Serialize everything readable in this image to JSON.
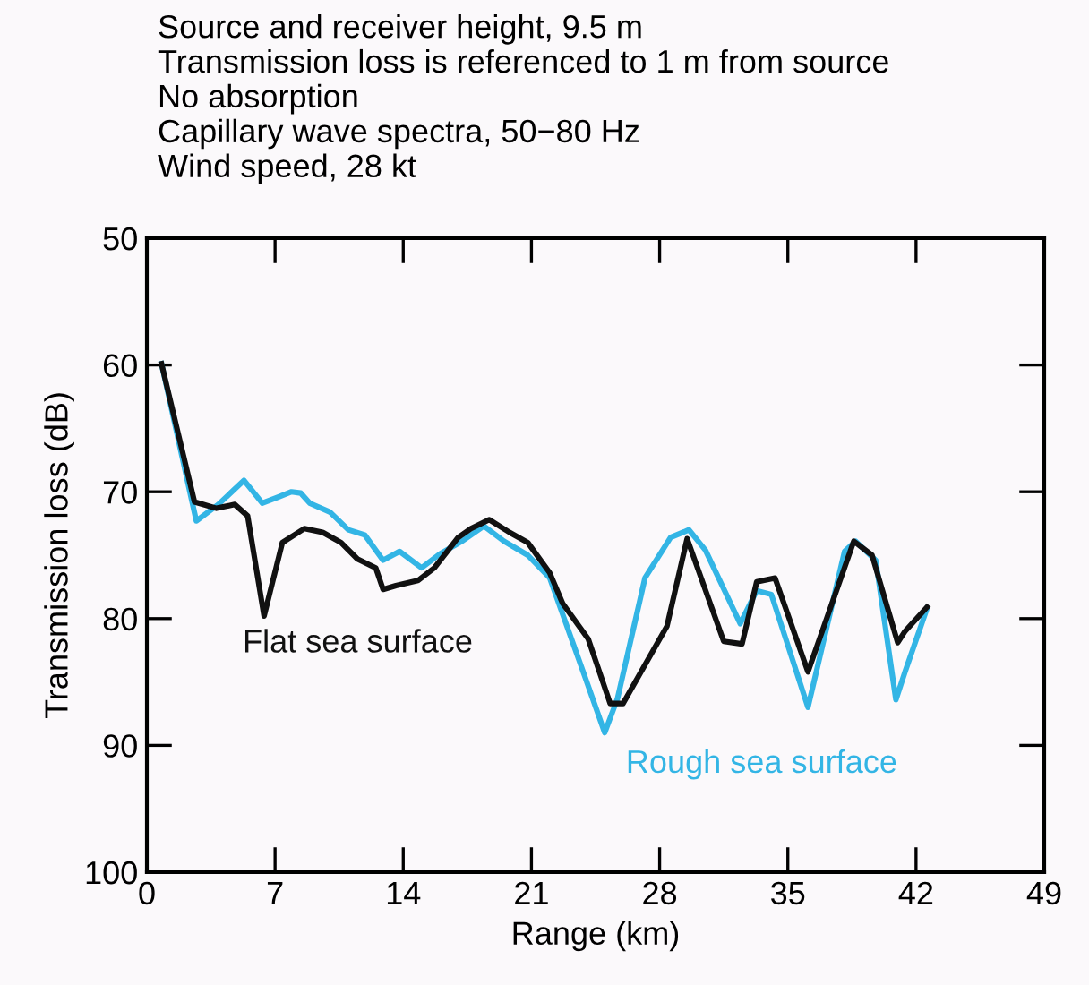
{
  "chart_data": {
    "type": "line",
    "title": "Source and receiver height, 9.5 m\nTransmission loss is referenced to 1 m from source\nNo absorption\nCapillary wave spectra, 50−80 Hz\nWind speed, 28 kt",
    "xlabel": "Range (km)",
    "ylabel": "Transmission loss (dB)",
    "xlim": [
      0,
      49
    ],
    "xticks": [
      0,
      7,
      14,
      21,
      28,
      35,
      42,
      49
    ],
    "ylim": [
      100,
      50
    ],
    "yticks": [
      50,
      60,
      70,
      80,
      90,
      100
    ],
    "grid": false,
    "legend": false,
    "marker": "none",
    "line_style": "solid",
    "series": [
      {
        "name": "Rough sea surface",
        "color": "#33b5e5",
        "x": [
          0.8,
          2.7,
          3.9,
          5.3,
          6.3,
          7.2,
          7.9,
          8.4,
          8.9,
          10,
          11,
          11.9,
          12.9,
          13.8,
          15,
          16,
          17.2,
          18.4,
          19.5,
          20.8,
          22,
          23.9,
          25,
          25.7,
          27.2,
          28.6,
          29.6,
          30.5,
          32.4,
          33.3,
          34.1,
          36.1,
          38.1,
          38.7,
          39.8,
          40.9,
          41.4,
          42.6
        ],
        "values": [
          59.9,
          72.3,
          71,
          69.1,
          70.9,
          70.4,
          70,
          70.1,
          70.9,
          71.6,
          73,
          73.4,
          75.4,
          74.7,
          76,
          74.9,
          73.9,
          72.7,
          73.9,
          75,
          76.8,
          84.5,
          89,
          86.3,
          76.8,
          73.6,
          73,
          74.6,
          80.4,
          77.8,
          78.1,
          87,
          74.7,
          73.9,
          75.4,
          86.4,
          84.2,
          79.2
        ]
      },
      {
        "name": "Flat sea surface",
        "color": "#111111",
        "x": [
          0.8,
          2.6,
          3.8,
          4.8,
          5.5,
          6.4,
          7.4,
          8.6,
          9.6,
          10.6,
          11.5,
          12.5,
          12.9,
          13.6,
          14.8,
          15.7,
          17,
          17.7,
          18.7,
          19.8,
          20.8,
          22,
          22.7,
          24.1,
          25.3,
          26,
          28.4,
          29.5,
          31.5,
          32.5,
          33.3,
          34.3,
          36.1,
          38.6,
          39.6,
          41,
          41.4,
          42.6
        ],
        "values": [
          59.9,
          70.8,
          71.3,
          71,
          71.9,
          79.8,
          74,
          72.9,
          73.2,
          74,
          75.3,
          76,
          77.7,
          77.4,
          77,
          76,
          73.6,
          72.9,
          72.2,
          73.2,
          74,
          76.4,
          78.8,
          81.6,
          86.7,
          86.7,
          80.6,
          73.7,
          81.8,
          82,
          77.1,
          76.8,
          84.2,
          73.9,
          75,
          81.9,
          81,
          79.1
        ]
      }
    ]
  }
}
